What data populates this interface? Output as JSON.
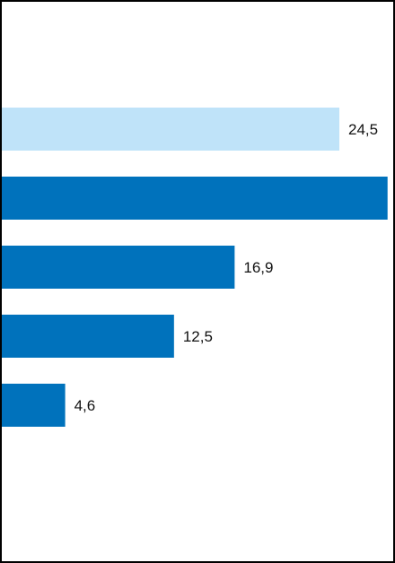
{
  "chart_data": {
    "type": "bar",
    "orientation": "horizontal",
    "title": "",
    "xlabel": "",
    "ylabel": "",
    "categories": [
      "",
      "",
      "",
      "",
      ""
    ],
    "values": [
      24.5,
      28.0,
      16.9,
      12.5,
      4.6
    ],
    "value_labels": [
      "24,5",
      "",
      "16,9",
      "12,5",
      "4,6"
    ],
    "bar_colors": [
      "#bfe3f9",
      "#0072bc",
      "#0072bc",
      "#0072bc",
      "#0072bc"
    ],
    "grid": false,
    "legend": "none"
  }
}
